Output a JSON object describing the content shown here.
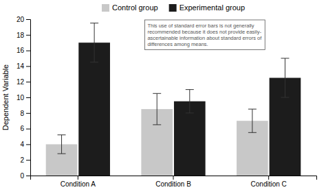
{
  "chart_data": {
    "type": "bar",
    "categories": [
      "Condition A",
      "Condition B",
      "Condition C"
    ],
    "ylabel": "Dependent Variable",
    "ylim": [
      0,
      20
    ],
    "yticks": [
      0,
      2,
      4,
      6,
      8,
      10,
      12,
      14,
      16,
      18,
      20
    ],
    "series": [
      {
        "name": "Control group",
        "color": "#c8c8c8",
        "values": [
          4.0,
          8.5,
          7.0
        ],
        "errors": [
          1.2,
          2.0,
          1.5
        ]
      },
      {
        "name": "Experimental group",
        "color": "#1c1c1c",
        "values": [
          17.0,
          9.5,
          12.5
        ],
        "errors": [
          2.5,
          1.5,
          2.5
        ]
      }
    ],
    "annotation": "This use of standard error bars is not generally\nrecommended because it does not provide easily-\nascertainable information about standard errors of\ndifferences among means.",
    "legend": "top",
    "grid": false
  }
}
